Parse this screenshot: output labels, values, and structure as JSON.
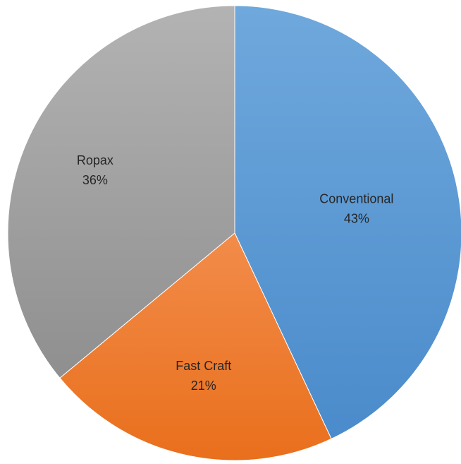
{
  "chart_data": {
    "type": "pie",
    "title": "",
    "categories": [
      "Conventional",
      "Fast Craft",
      "Ropax"
    ],
    "values": [
      43,
      21,
      36
    ],
    "value_labels": [
      "43%",
      "21%",
      "36%"
    ],
    "legend": "none",
    "start_angle": "12 o'clock",
    "direction": "clockwise",
    "colors": {
      "Conventional": [
        "#6fa8dc",
        "#4a8bcb"
      ],
      "Fast Craft": [
        "#f28c4a",
        "#e96f1c"
      ],
      "Ropax": [
        "#b3b3b3",
        "#8f8f8f"
      ]
    }
  }
}
